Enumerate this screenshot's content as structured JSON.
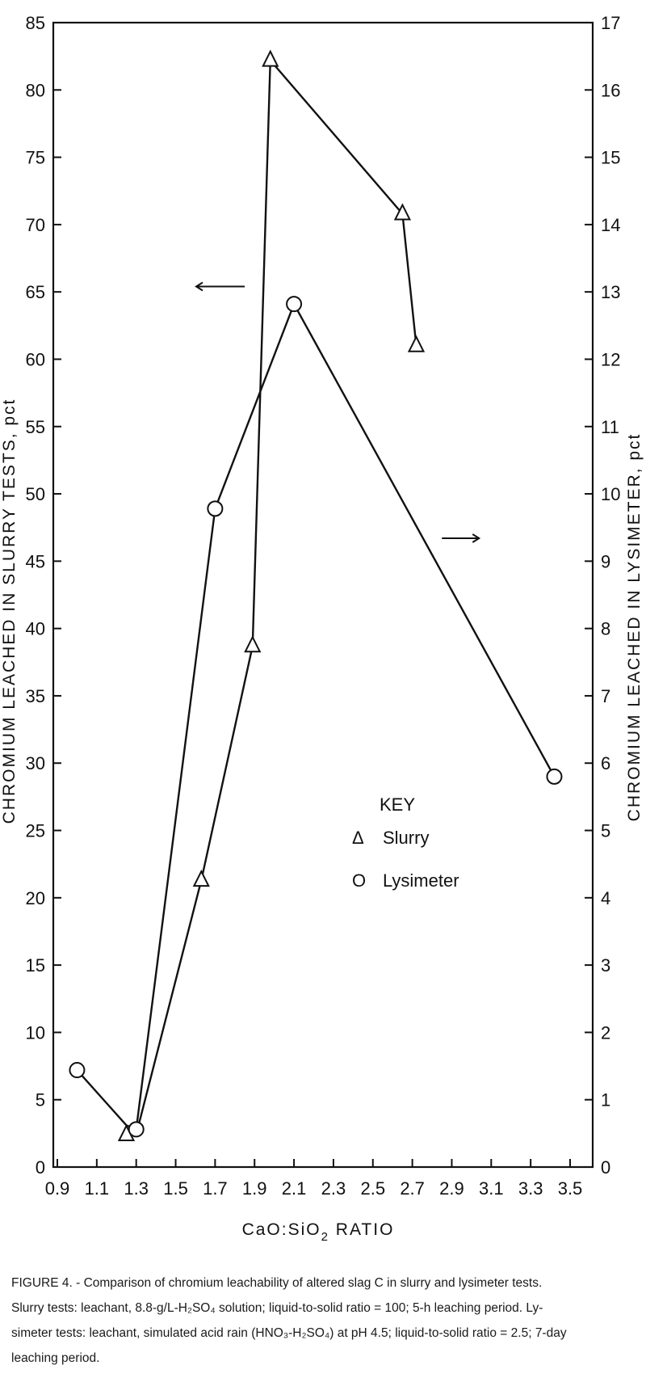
{
  "chart_data": {
    "type": "line",
    "x_axis": {
      "title_parts": [
        "CaO:SiO",
        "2",
        "  RATIO"
      ],
      "ticks": [
        0.9,
        1.1,
        1.3,
        1.5,
        1.7,
        1.9,
        2.1,
        2.3,
        2.5,
        2.7,
        2.9,
        3.1,
        3.3,
        3.5
      ],
      "tick_labels": [
        "0.9",
        "1.1",
        "1.3",
        "1.5",
        "1.7",
        "1.9",
        "2.1",
        "2.3",
        "2.5",
        "2.7",
        "2.9",
        "3.1",
        "3.3",
        "3.5"
      ],
      "range": [
        0.9,
        3.5
      ]
    },
    "y_left": {
      "title": "CHROMIUM LEACHED IN SLURRY TESTS,",
      "unit": "pct",
      "ticks": [
        0,
        5,
        10,
        15,
        20,
        25,
        30,
        35,
        40,
        45,
        50,
        55,
        60,
        65,
        70,
        75,
        80,
        85
      ],
      "tick_labels": [
        "0",
        "5",
        "10",
        "15",
        "20",
        "25",
        "30",
        "35",
        "40",
        "45",
        "50",
        "55",
        "60",
        "65",
        "70",
        "75",
        "80",
        "85"
      ],
      "range": [
        0,
        85
      ]
    },
    "y_right": {
      "title": "CHROMIUM LEACHED IN LYSIMETER,",
      "unit": "pct",
      "ticks": [
        0,
        1,
        2,
        3,
        4,
        5,
        6,
        7,
        8,
        9,
        10,
        11,
        12,
        13,
        14,
        15,
        16,
        17
      ],
      "tick_labels": [
        "0",
        "1",
        "2",
        "3",
        "4",
        "5",
        "6",
        "7",
        "8",
        "9",
        "10",
        "11",
        "12",
        "13",
        "14",
        "15",
        "16",
        "17"
      ],
      "range": [
        0,
        17
      ]
    },
    "series": [
      {
        "name": "Slurry",
        "marker": "triangle",
        "axis": "left",
        "points": [
          {
            "x": 1.25,
            "y": 2.4
          },
          {
            "x": 1.31,
            "y": 3.0
          },
          {
            "x": 1.63,
            "y": 21.3
          },
          {
            "x": 1.89,
            "y": 38.7
          },
          {
            "x": 1.98,
            "y": 82.2
          },
          {
            "x": 2.65,
            "y": 70.8
          },
          {
            "x": 2.72,
            "y": 61.0
          }
        ],
        "markers_at": [
          0,
          2,
          3,
          4,
          5,
          6
        ]
      },
      {
        "name": "Lysimeter",
        "marker": "circle",
        "axis": "right",
        "points": [
          {
            "x": 1.0,
            "y": 1.44
          },
          {
            "x": 1.25,
            "y": 0.62
          },
          {
            "x": 1.3,
            "y": 0.56
          },
          {
            "x": 1.7,
            "y": 9.78
          },
          {
            "x": 2.1,
            "y": 12.82
          },
          {
            "x": 3.42,
            "y": 5.8
          }
        ],
        "markers_at": [
          0,
          2,
          3,
          4,
          5
        ]
      }
    ],
    "annotations": [
      {
        "type": "arrow",
        "direction": "left",
        "points_to_axis": "left",
        "x": 1.85,
        "y_left": 65.4
      },
      {
        "type": "arrow",
        "direction": "right",
        "points_to_axis": "right",
        "x": 2.85,
        "y_left": 46.7
      }
    ],
    "legend": {
      "title": "KEY",
      "placement": "center-right",
      "entries": [
        {
          "symbol": "Δ",
          "label": "Slurry"
        },
        {
          "symbol": "O",
          "label": "Lysimeter"
        }
      ]
    },
    "grid": false
  },
  "caption": {
    "lines": [
      "FIGURE 4. - Comparison of chromium leachability of altered slag C in slurry and lysimeter tests.",
      "Slurry tests: leachant, 8.8-g/L-H₂SO₄ solution; liquid-to-solid ratio = 100; 5-h leaching period. Ly-",
      "simeter tests: leachant, simulated acid rain (HNO₃-H₂SO₄) at pH 4.5; liquid-to-solid ratio = 2.5; 7-day",
      "leaching period."
    ]
  },
  "colors": {
    "ink": "#111111",
    "background": "#ffffff"
  }
}
